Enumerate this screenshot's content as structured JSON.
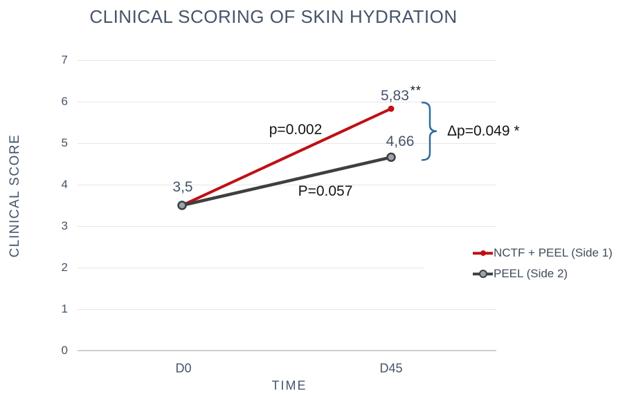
{
  "chart_data": {
    "type": "line",
    "title": "CLINICAL SCORING OF SKIN HYDRATION",
    "xlabel": "TIME",
    "ylabel": "CLINICAL SCORE",
    "categories": [
      "D0",
      "D45"
    ],
    "ylim": [
      0,
      7
    ],
    "yticks": [
      0,
      1,
      2,
      3,
      4,
      5,
      6,
      7
    ],
    "grid": "horizontal gridlines only",
    "legend_position": "right, lower third, white background",
    "series": [
      {
        "name": "NCTF + PEEL (Side 1)",
        "color": "#bf1015",
        "values": [
          3.5,
          5.83
        ],
        "marker": "small filled red dot at D45",
        "p_label": "p=0.002",
        "significance": "**"
      },
      {
        "name": "PEEL (Side 2)",
        "color": "#3f3f3f",
        "values": [
          3.5,
          4.66
        ],
        "marker": "gray-blue circle with dark ring",
        "marker_fill": "#9aa3ad",
        "p_label": "P=0.057"
      }
    ],
    "point_labels": {
      "shared_d0": "3,5",
      "nctf_d45": "5,83",
      "nctf_d45_sig": "**",
      "peel_d45": "4,66"
    },
    "annotations": {
      "nctf_p": "p=0.002",
      "peel_p": "P=0.057",
      "delta_p": "Δp=0.049 *",
      "brace_color": "#2e6da0"
    },
    "colors": {
      "title_text": "#44546a",
      "axis_text": "#44546a",
      "annotation_text": "#141414",
      "gridline": "#e6e6e6",
      "baseline": "#cfcfcf"
    }
  }
}
